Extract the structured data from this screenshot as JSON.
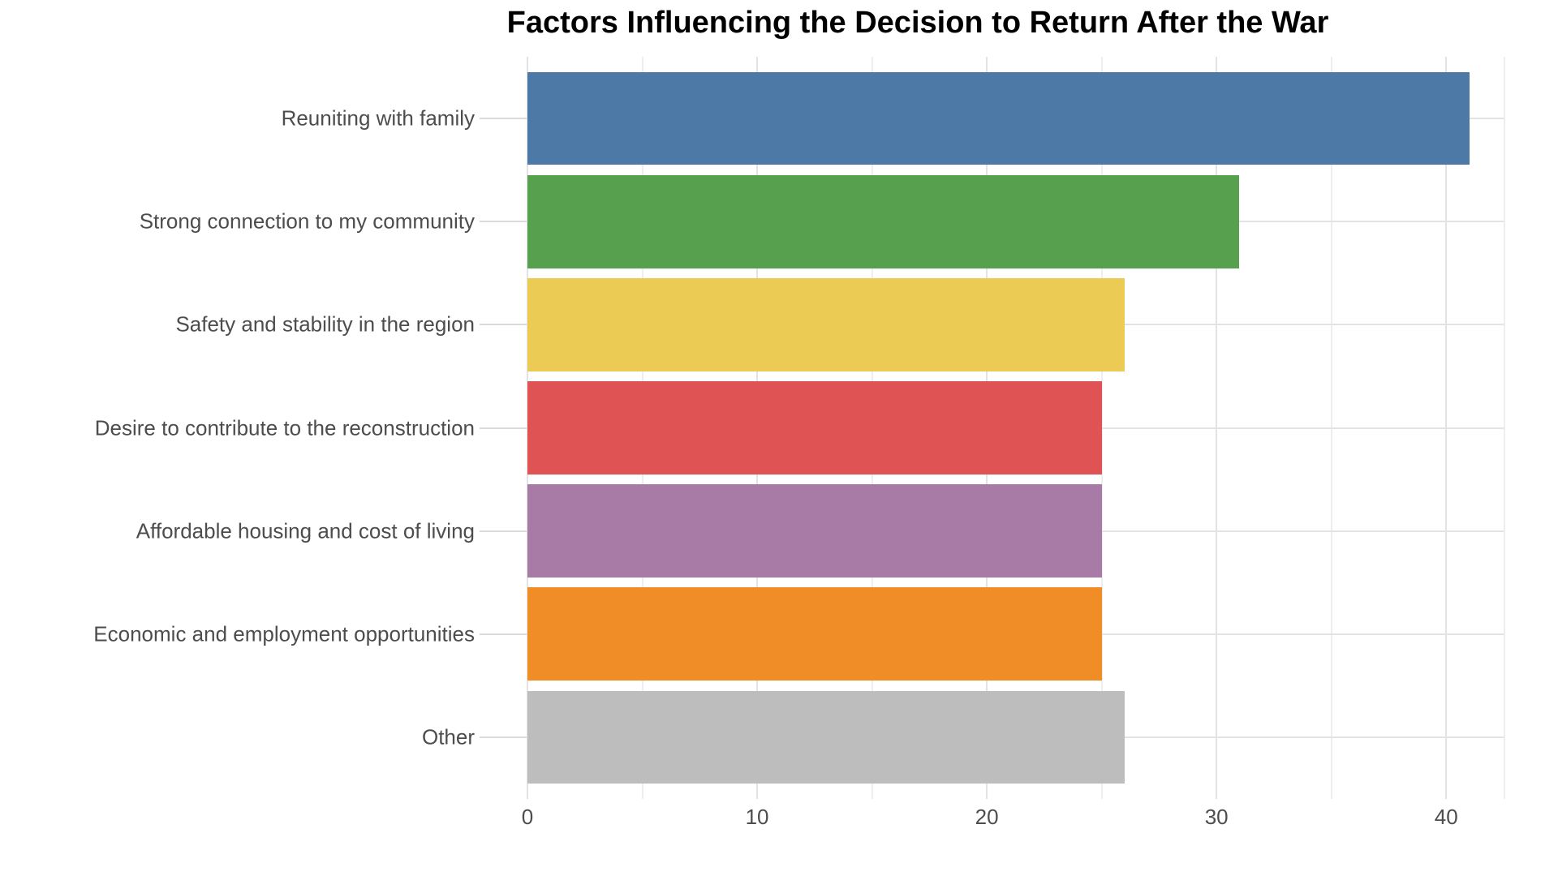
{
  "chart_data": {
    "type": "bar",
    "orientation": "horizontal",
    "title": "Factors Influencing the Decision to Return After the War",
    "categories": [
      "Reuniting with family",
      "Strong connection to my community",
      "Safety and stability in the region",
      "Desire to contribute to the reconstruction",
      "Affordable housing and cost of living",
      "Economic and employment opportunities",
      "Other"
    ],
    "values": [
      41,
      31,
      26,
      25,
      25,
      25,
      26
    ],
    "bar_colors": [
      "#4d79a7",
      "#57a04e",
      "#eccb55",
      "#df5355",
      "#a87ba6",
      "#f08d26",
      "#bdbdbd"
    ],
    "xlabel": "",
    "ylabel": "",
    "x_ticks": [
      0,
      10,
      20,
      30,
      40
    ],
    "x_minor_ticks": [
      5,
      15,
      25,
      35
    ],
    "xlim": [
      0,
      42.5
    ],
    "grid": true,
    "legend": false,
    "background_color": "#ffffff",
    "major_grid_color": "#e3e3e3",
    "minor_grid_color": "#eeeeee",
    "tick_mark_color": "#dadada",
    "axis_text_color": "#4d4d4d",
    "title_color": "#000000"
  }
}
